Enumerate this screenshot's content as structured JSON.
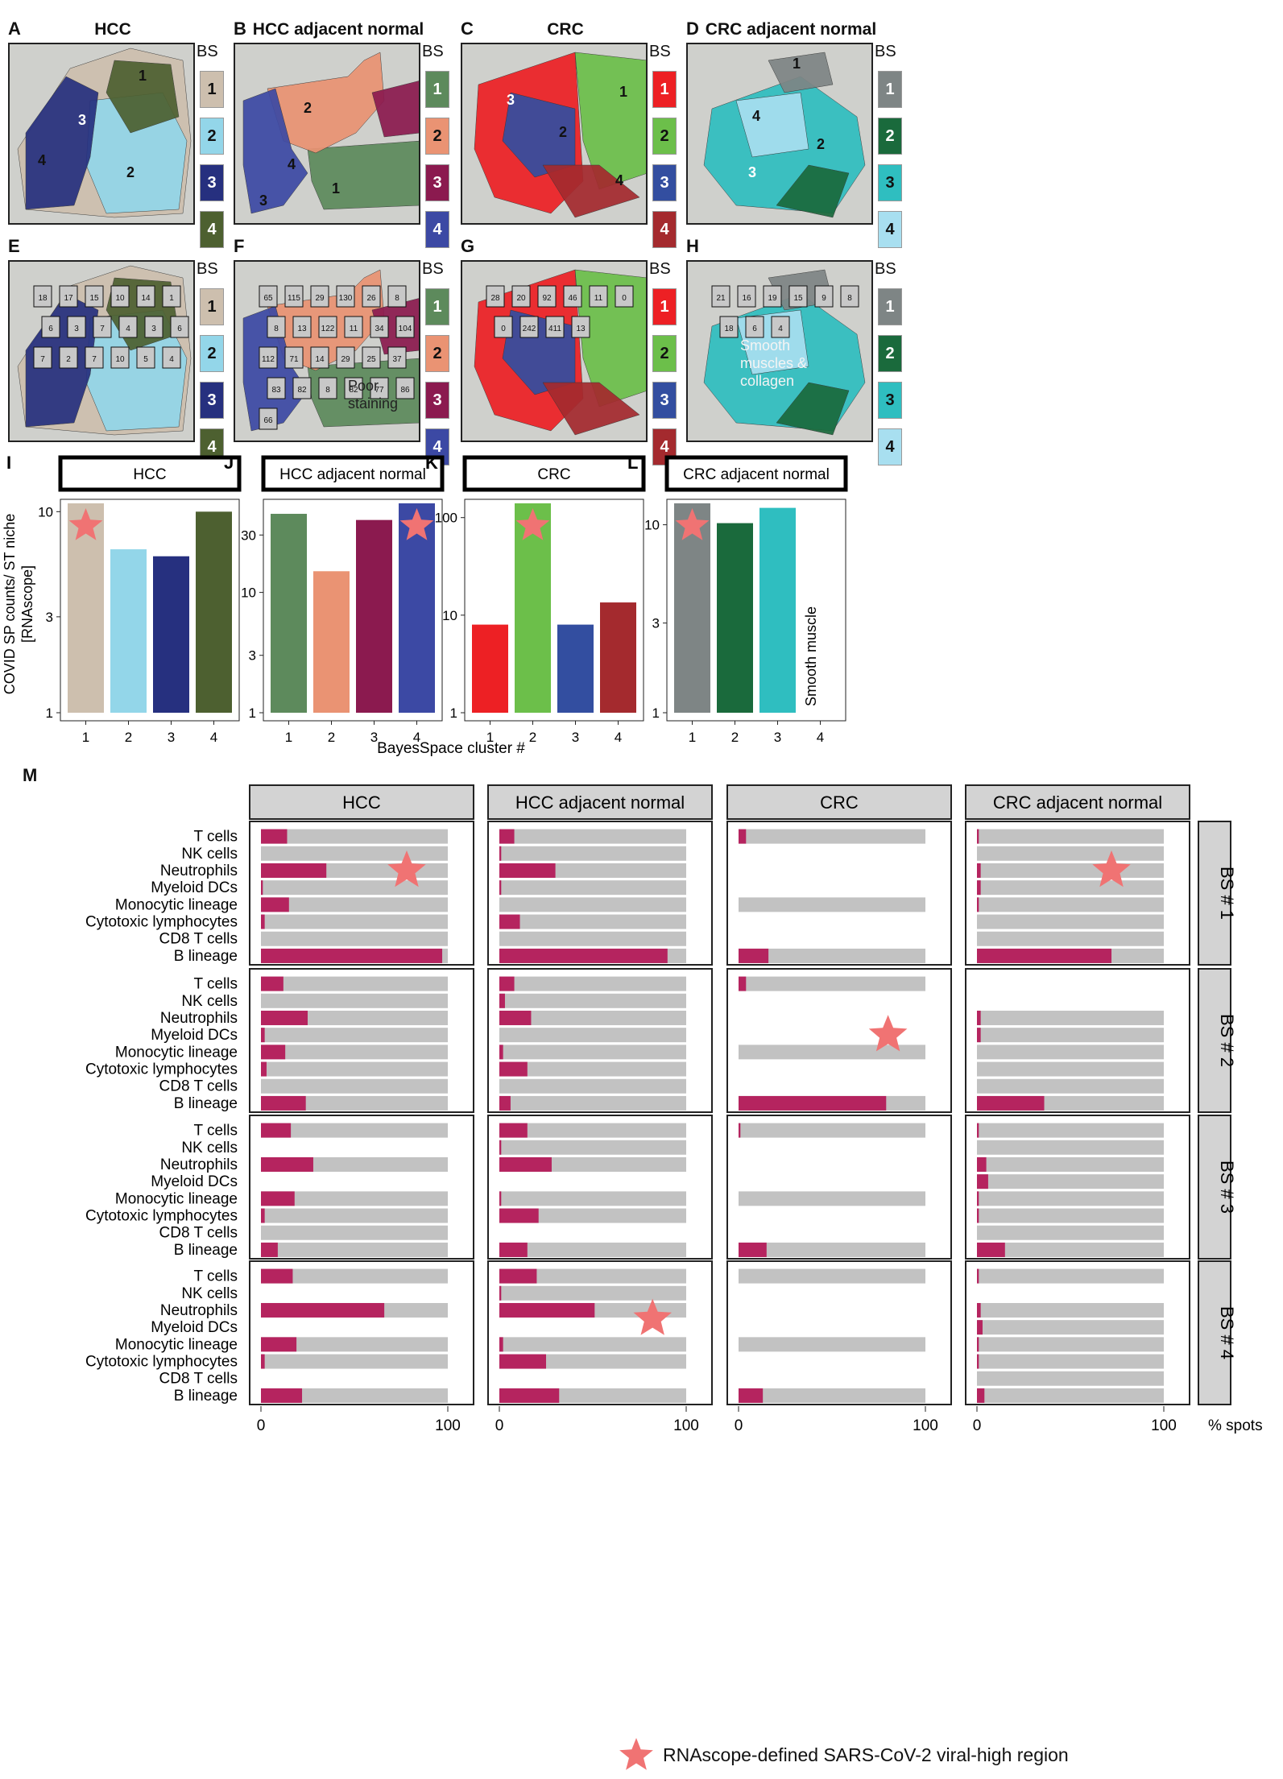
{
  "panels_top": [
    {
      "letter": "A",
      "title": "HCC",
      "legend_colors": [
        "#cdbfae",
        "#93d6e9",
        "#26307f",
        "#4d6030"
      ],
      "legend_text_colors": [
        "#111",
        "#111",
        "#fff",
        "#fff"
      ],
      "region_labels": [
        "1",
        "2",
        "3",
        "4"
      ]
    },
    {
      "letter": "B",
      "title": "HCC adjacent normal",
      "legend_colors": [
        "#5d8a5c",
        "#ea9373",
        "#8b1a4f",
        "#3c49a4"
      ],
      "legend_text_colors": [
        "#fff",
        "#111",
        "#fff",
        "#fff"
      ],
      "region_labels": [
        "1",
        "2",
        "3",
        "4"
      ]
    },
    {
      "letter": "C",
      "title": "CRC",
      "legend_colors": [
        "#ed2024",
        "#6cbf4a",
        "#334ea0",
        "#a42a2e"
      ],
      "legend_text_colors": [
        "#fff",
        "#111",
        "#fff",
        "#fff"
      ],
      "region_labels": [
        "1",
        "2",
        "3",
        "4"
      ]
    },
    {
      "letter": "D",
      "title": "CRC adjacent normal",
      "legend_colors": [
        "#7e8585",
        "#1a6a3c",
        "#2fbec0",
        "#a8dff0"
      ],
      "legend_text_colors": [
        "#fff",
        "#fff",
        "#111",
        "#111"
      ],
      "region_labels": [
        "1",
        "2",
        "3",
        "4"
      ]
    }
  ],
  "panels_mid": [
    {
      "letter": "E",
      "spot_ids": [
        "18",
        "17",
        "15",
        "10",
        "14",
        "1",
        "6",
        "3",
        "7",
        "4",
        "3",
        "6",
        "7",
        "2",
        "7",
        "10",
        "5",
        "4"
      ]
    },
    {
      "letter": "F",
      "spot_ids": [
        "65",
        "115",
        "29",
        "130",
        "26",
        "8",
        "8",
        "13",
        "122",
        "11",
        "34",
        "104",
        "112",
        "71",
        "14",
        "29",
        "25",
        "37",
        "83",
        "82",
        "8",
        "82",
        "77",
        "86",
        "66"
      ],
      "annotation": "Poor staining"
    },
    {
      "letter": "G",
      "spot_ids": [
        "28",
        "20",
        "92",
        "46",
        "11",
        "0",
        "0",
        "242",
        "411",
        "13"
      ]
    },
    {
      "letter": "H",
      "spot_ids": [
        "21",
        "16",
        "19",
        "15",
        "9",
        "8",
        "18",
        "6",
        "4"
      ],
      "annotation": "Smooth muscles & collagen"
    }
  ],
  "legend_header": "BS",
  "chart_data": [
    {
      "letter": "I",
      "type": "bar",
      "title": "HCC",
      "scale": "log",
      "categories": [
        "1",
        "2",
        "3",
        "4"
      ],
      "values": [
        11,
        6.5,
        6,
        10
      ],
      "colors": [
        "#cdbfae",
        "#93d6e9",
        "#26307f",
        "#4d6030"
      ],
      "ylim": [
        1,
        11
      ],
      "yticks": [
        "1",
        "3",
        "10"
      ],
      "star_bar": 1
    },
    {
      "letter": "J",
      "type": "bar",
      "title": "HCC adjacent normal",
      "scale": "log",
      "categories": [
        "1",
        "2",
        "3",
        "4"
      ],
      "values": [
        45,
        15,
        40,
        55
      ],
      "colors": [
        "#5d8a5c",
        "#ea9373",
        "#8b1a4f",
        "#3c49a4"
      ],
      "ylim": [
        1,
        55
      ],
      "yticks": [
        "1",
        "3",
        "10",
        "30"
      ],
      "star_bar": 4
    },
    {
      "letter": "K",
      "type": "bar",
      "title": "CRC",
      "scale": "log",
      "categories": [
        "1",
        "2",
        "3",
        "4"
      ],
      "values": [
        8,
        140,
        8,
        13.5
      ],
      "colors": [
        "#ed2024",
        "#6cbf4a",
        "#334ea0",
        "#a42a2e"
      ],
      "ylim": [
        1,
        140
      ],
      "yticks": [
        "1",
        "10",
        "100"
      ],
      "star_bar": 2
    },
    {
      "letter": "L",
      "type": "bar",
      "title": "CRC adjacent normal",
      "scale": "log",
      "categories": [
        "1",
        "2",
        "3",
        "4"
      ],
      "values": [
        13,
        10.2,
        12.3,
        0
      ],
      "colors": [
        "#7e8585",
        "#1a6a3c",
        "#2fbec0",
        "#a8dff0"
      ],
      "ylim": [
        1,
        13
      ],
      "yticks": [
        "1",
        "3",
        "10"
      ],
      "star_bar": 1,
      "annotation": "Smooth muscle"
    }
  ],
  "bar_axis": {
    "ylabel": "COVID SP counts/ ST niche",
    "ylabel2": "[RNAscope]",
    "xlabel": "BayesSpace cluster #"
  },
  "panel_M": {
    "letter": "M",
    "columns": [
      "HCC",
      "HCC adjacent normal",
      "CRC",
      "CRC adjacent normal"
    ],
    "rows": [
      "BS # 1",
      "BS # 2",
      "BS # 3",
      "BS # 4"
    ],
    "cell_types": [
      "T cells",
      "NK cells",
      "Neutrophils",
      "Myeloid DCs",
      "Monocytic lineage",
      "Cytotoxic lymphocytes",
      "CD8 T cells",
      "B lineage"
    ],
    "x_ticks": [
      "0",
      "100",
      "0",
      "100",
      "0",
      "100",
      "0",
      "100"
    ],
    "x_unit": "% spots",
    "bar_color": "#b5245f",
    "track_color": "#c2c2c2",
    "percents": [
      [
        [
          14,
          0,
          35,
          1,
          15,
          2,
          0,
          97
        ],
        [
          8,
          1,
          30,
          1,
          0,
          11,
          0,
          90
        ],
        [
          4,
          0,
          0,
          0,
          0,
          0,
          0,
          16
        ],
        [
          1,
          0,
          2,
          2,
          1,
          0,
          0,
          72
        ]
      ],
      [
        [
          12,
          0,
          25,
          2,
          13,
          3,
          0,
          24
        ],
        [
          8,
          3,
          17,
          0,
          2,
          15,
          0,
          6
        ],
        [
          4,
          0,
          0,
          0,
          0,
          0,
          0,
          79
        ],
        [
          0,
          0,
          2,
          2,
          0,
          0,
          0,
          36
        ]
      ],
      [
        [
          16,
          0,
          28,
          0,
          18,
          2,
          0,
          9
        ],
        [
          15,
          1,
          28,
          0,
          1,
          21,
          0,
          15
        ],
        [
          1,
          0,
          0,
          0,
          0,
          0,
          0,
          15
        ],
        [
          1,
          0,
          5,
          6,
          1,
          1,
          0,
          15
        ]
      ],
      [
        [
          17,
          0,
          66,
          0,
          19,
          2,
          0,
          22
        ],
        [
          20,
          1,
          51,
          0,
          2,
          25,
          0,
          32
        ],
        [
          0,
          0,
          0,
          0,
          0,
          0,
          0,
          13
        ],
        [
          1,
          0,
          2,
          3,
          1,
          1,
          0,
          4
        ]
      ]
    ],
    "tracks_present": [
      [
        [
          1,
          1,
          1,
          1,
          1,
          1,
          1,
          1
        ],
        [
          1,
          1,
          1,
          1,
          1,
          1,
          1,
          1
        ],
        [
          1,
          0,
          0,
          0,
          1,
          0,
          0,
          1
        ],
        [
          1,
          1,
          1,
          1,
          1,
          1,
          1,
          1
        ]
      ],
      [
        [
          1,
          1,
          1,
          1,
          1,
          1,
          1,
          1
        ],
        [
          1,
          1,
          1,
          1,
          1,
          1,
          1,
          1
        ],
        [
          1,
          0,
          0,
          0,
          1,
          0,
          0,
          1
        ],
        [
          0,
          0,
          1,
          1,
          1,
          1,
          1,
          1
        ]
      ],
      [
        [
          1,
          0,
          1,
          0,
          1,
          1,
          1,
          1
        ],
        [
          1,
          1,
          1,
          0,
          1,
          1,
          0,
          1
        ],
        [
          1,
          0,
          0,
          0,
          1,
          0,
          0,
          1
        ],
        [
          1,
          1,
          1,
          1,
          1,
          1,
          1,
          1
        ]
      ],
      [
        [
          1,
          0,
          1,
          0,
          1,
          1,
          0,
          1
        ],
        [
          1,
          1,
          1,
          0,
          1,
          1,
          0,
          1
        ],
        [
          1,
          0,
          0,
          0,
          1,
          0,
          0,
          1
        ],
        [
          1,
          0,
          1,
          1,
          1,
          1,
          1,
          1
        ]
      ]
    ],
    "stars": [
      {
        "row": 0,
        "col": 0,
        "pct": 78,
        "item": 2.5
      },
      {
        "row": 0,
        "col": 3,
        "pct": 72,
        "item": 2.5
      },
      {
        "row": 1,
        "col": 2,
        "pct": 80,
        "item": 3.5
      },
      {
        "row": 3,
        "col": 1,
        "pct": 82,
        "item": 3
      }
    ]
  },
  "footer_legend": "RNAscope-defined SARS-CoV-2 viral-high region",
  "star_color": "#f07373"
}
